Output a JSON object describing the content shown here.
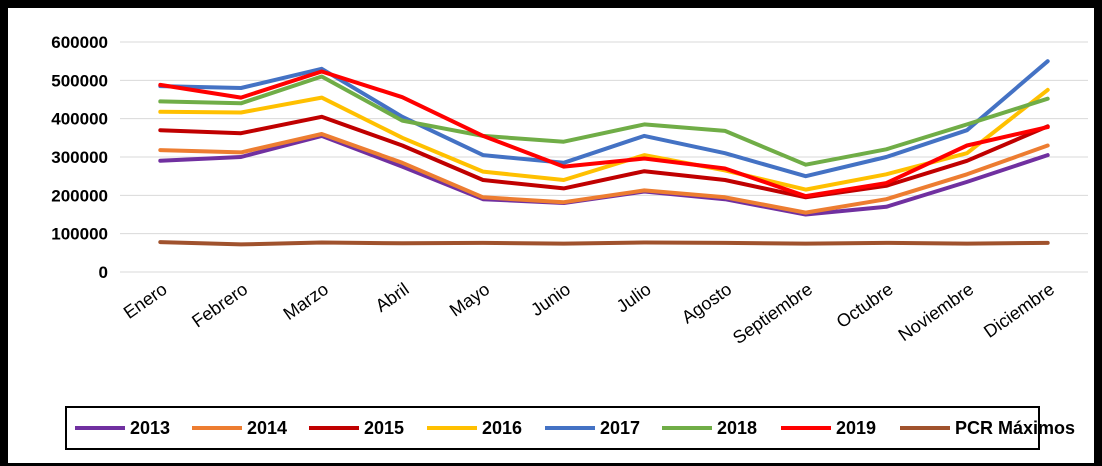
{
  "chart_data": {
    "type": "line",
    "categories": [
      "Enero",
      "Febrero",
      "Marzo",
      "Abril",
      "Mayo",
      "Junio",
      "Julio",
      "Agosto",
      "Septiembre",
      "Octubre",
      "Noviembre",
      "Diciembre"
    ],
    "yticks": [
      "0",
      "100000",
      "200000",
      "300000",
      "400000",
      "500000",
      "600000"
    ],
    "ylim": [
      0,
      600000
    ],
    "grid": true,
    "legend_position": "bottom",
    "series": [
      {
        "name": "2013",
        "color": "#7030A0",
        "values": [
          290000,
          300000,
          355000,
          275000,
          190000,
          180000,
          210000,
          190000,
          150000,
          170000,
          235000,
          305000
        ]
      },
      {
        "name": "2014",
        "color": "#ED7D31",
        "values": [
          318000,
          312000,
          360000,
          285000,
          195000,
          182000,
          213000,
          195000,
          155000,
          190000,
          255000,
          330000
        ]
      },
      {
        "name": "2015",
        "color": "#C00000",
        "values": [
          370000,
          362000,
          405000,
          330000,
          240000,
          218000,
          263000,
          240000,
          195000,
          225000,
          290000,
          380000
        ]
      },
      {
        "name": "2016",
        "color": "#FFC000",
        "values": [
          418000,
          416000,
          455000,
          350000,
          262000,
          240000,
          305000,
          265000,
          215000,
          255000,
          310000,
          475000
        ]
      },
      {
        "name": "2017",
        "color": "#4472C4",
        "values": [
          485000,
          480000,
          530000,
          405000,
          305000,
          285000,
          355000,
          310000,
          250000,
          300000,
          370000,
          550000
        ]
      },
      {
        "name": "2018",
        "color": "#70AD47",
        "values": [
          445000,
          440000,
          510000,
          395000,
          355000,
          340000,
          385000,
          368000,
          280000,
          320000,
          385000,
          452000
        ]
      },
      {
        "name": "2019",
        "color": "#FF0000",
        "values": [
          488000,
          455000,
          523000,
          456000,
          355000,
          275000,
          296000,
          270000,
          198000,
          232000,
          330000,
          378000
        ]
      },
      {
        "name": "PCR Máximos",
        "color": "#A0522D",
        "values": [
          78000,
          72000,
          77000,
          75000,
          76000,
          74000,
          77000,
          76000,
          74000,
          76000,
          74000,
          76000
        ]
      }
    ]
  }
}
